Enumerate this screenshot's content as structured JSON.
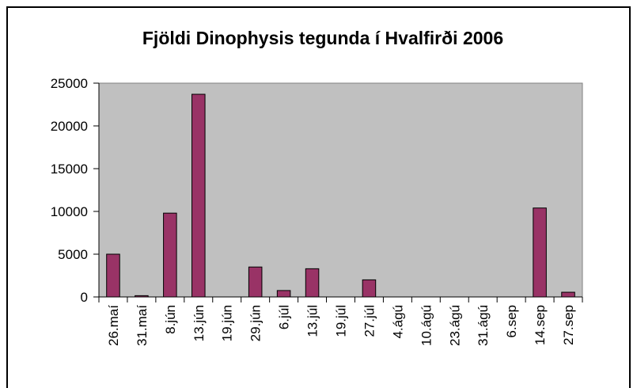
{
  "chart_data": {
    "type": "bar",
    "title": "Fjöldi Dinophysis tegunda í Hvalfirði 2006",
    "categories": [
      "26.maí",
      "31.maí",
      "8.jún",
      "13.jún",
      "19.jún",
      "29.jún",
      "6.júl",
      "13.júl",
      "19.júl",
      "27.júl",
      "4.ágú",
      "10.ágú",
      "23.ágú",
      "31.ágú",
      "6.sep",
      "14.sep",
      "27.sep"
    ],
    "values": [
      5000,
      150,
      9800,
      23700,
      0,
      3500,
      750,
      3300,
      0,
      2000,
      0,
      0,
      0,
      0,
      0,
      10400,
      550
    ],
    "color": "#993366",
    "ylim": [
      0,
      25000
    ],
    "yticks": [
      0,
      5000,
      10000,
      15000,
      20000,
      25000
    ]
  }
}
